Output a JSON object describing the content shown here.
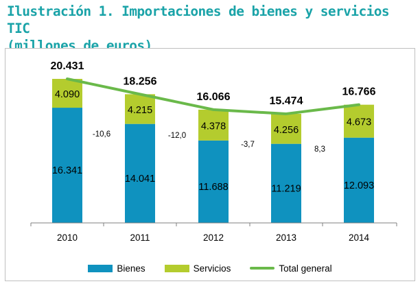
{
  "title_line1": "Ilustración 1. Importaciones de bienes y servicios TIC",
  "title_line2": "(millones de euros)",
  "chart_data": {
    "type": "bar",
    "stacked": true,
    "categories": [
      "2010",
      "2011",
      "2012",
      "2013",
      "2014"
    ],
    "series": [
      {
        "name": "Bienes",
        "values": [
          16341,
          14041,
          11688,
          11219,
          12093
        ],
        "labels": [
          "16.341",
          "14.041",
          "11.688",
          "11.219",
          "12.093"
        ],
        "color": "#0f92bf"
      },
      {
        "name": "Servicios",
        "values": [
          4090,
          4215,
          4378,
          4256,
          4673
        ],
        "labels": [
          "4.090",
          "4.215",
          "4.378",
          "4.256",
          "4.673"
        ],
        "color": "#b4cc2e"
      },
      {
        "name": "Total general",
        "type": "line",
        "values": [
          20431,
          18256,
          16066,
          15474,
          16766
        ],
        "labels": [
          "20.431",
          "18.256",
          "16.066",
          "15.474",
          "16.766"
        ],
        "color": "#6ab94a"
      }
    ],
    "changes": [
      "-10,6",
      "-12,0",
      "-3,7",
      "8,3"
    ],
    "grid": false,
    "legend_position": "bottom"
  }
}
